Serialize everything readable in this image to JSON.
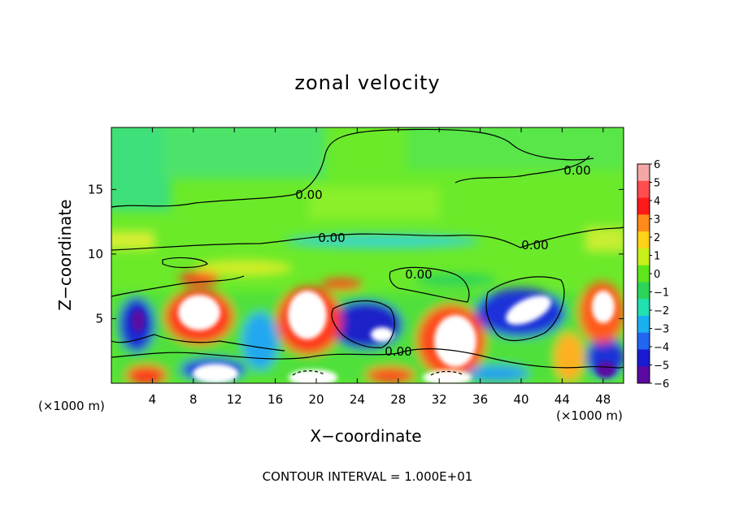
{
  "chart_data": {
    "type": "heatmap",
    "title": "zonal velocity",
    "xlabel": "X−coordinate",
    "ylabel": "Z−coordinate",
    "x_unit_left": "(×1000 m)",
    "x_unit_right": "(×1000 m)",
    "footer": "CONTOUR INTERVAL = 1.000E+01",
    "xlim": [
      0,
      50
    ],
    "ylim": [
      0,
      19.8
    ],
    "x_ticks": [
      "4",
      "8",
      "12",
      "16",
      "20",
      "24",
      "28",
      "32",
      "36",
      "40",
      "44",
      "48"
    ],
    "y_ticks": [
      "5",
      "10",
      "15"
    ],
    "colorbar": {
      "ticks": [
        "6",
        "5",
        "4",
        "3",
        "2",
        "1",
        "0",
        "−1",
        "−2",
        "−3",
        "−4",
        "−5",
        "−6"
      ],
      "range": [
        -6,
        6
      ],
      "colors": [
        "#f4a6a6",
        "#ff4d4d",
        "#ff1a1a",
        "#ff8a1a",
        "#ffd21a",
        "#c8f01a",
        "#5fe61a",
        "#2ed45a",
        "#22e0b0",
        "#1ab0f0",
        "#2266f0",
        "#1a1ad2",
        "#5a0aa0"
      ]
    },
    "contour_labels": [
      "0.00",
      "0.00",
      "0.00",
      "0.00",
      "0.00",
      "0.00"
    ]
  }
}
